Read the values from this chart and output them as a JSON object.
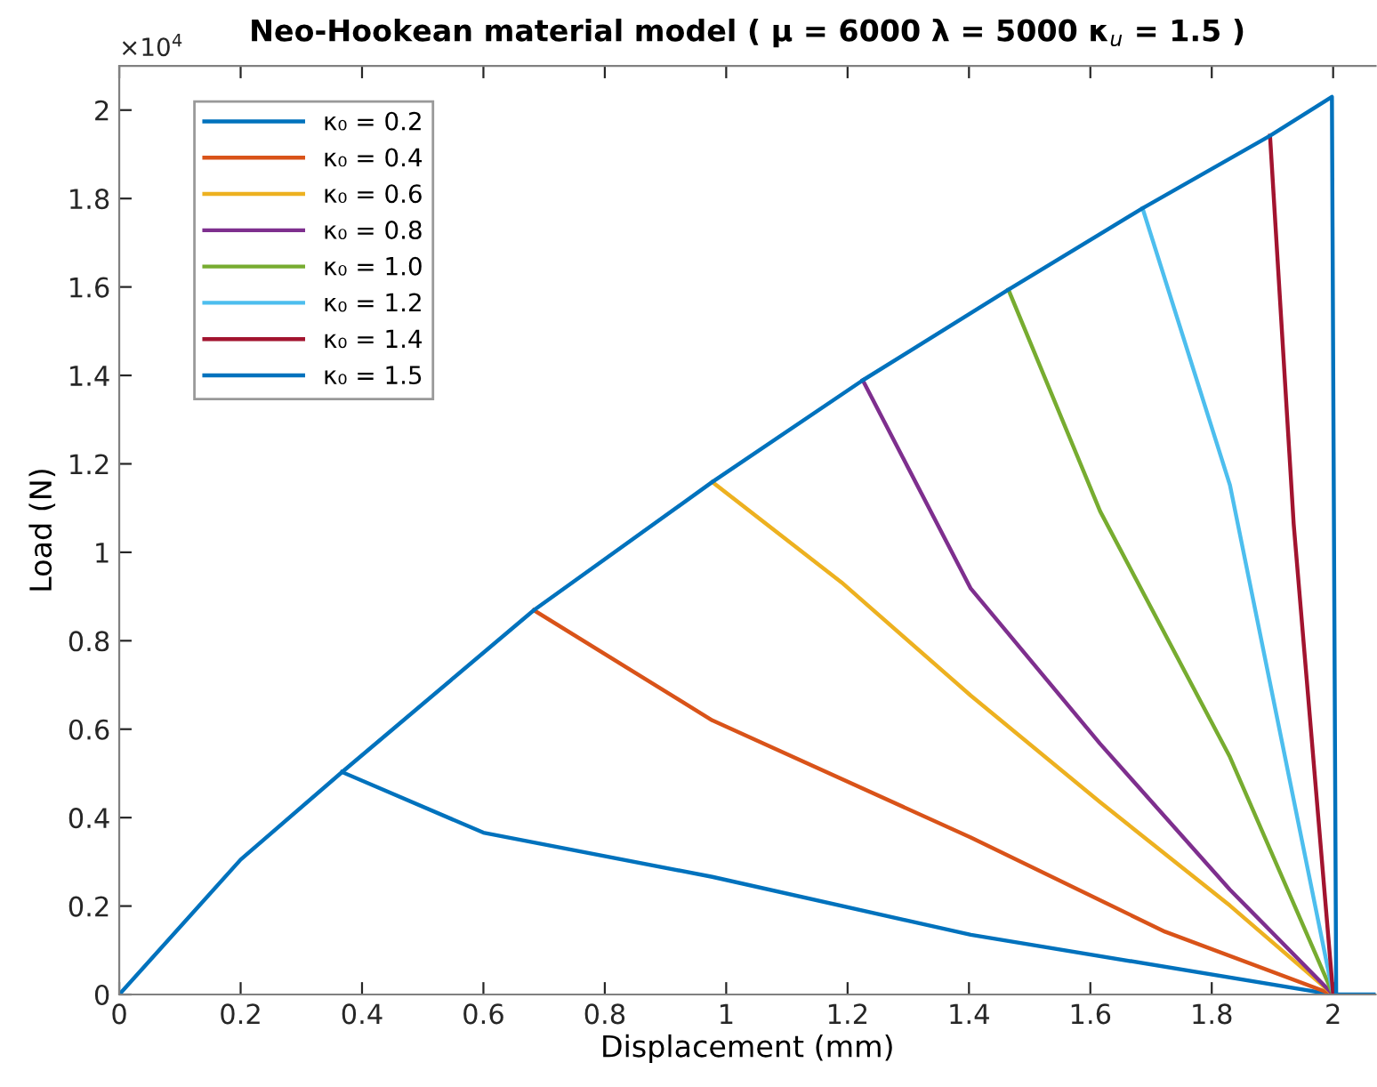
{
  "chart_data": {
    "type": "line",
    "title": "Neo-Hookean material model ( μ = 6000 λ = 5000 κ$_{u}$ = 1.5 )",
    "xlabel": "Displacement (mm)",
    "ylabel": "Load (N)",
    "annotations": [
      "×10$^{4}$"
    ],
    "series": [
      {
        "name": "κ₀ = 0.2",
        "color": "#0072bd",
        "x": [
          0.367,
          0.6,
          0.977,
          1.403,
          2.0
        ],
        "values": [
          0.503,
          0.366,
          0.266,
          0.135,
          0
        ]
      },
      {
        "name": "κ₀ = 0.4",
        "color": "#d95319",
        "x": [
          0.683,
          0.977,
          1.403,
          1.723,
          2.0
        ],
        "values": [
          0.869,
          0.62,
          0.355,
          0.142,
          0
        ]
      },
      {
        "name": "κ₀ = 0.6",
        "color": "#edb120",
        "x": [
          0.977,
          1.19,
          1.403,
          1.616,
          1.83,
          2.0
        ],
        "values": [
          1.159,
          0.932,
          0.676,
          0.435,
          0.201,
          0
        ]
      },
      {
        "name": "κ₀ = 0.8",
        "color": "#7e2f8e",
        "x": [
          1.225,
          1.403,
          1.616,
          1.83,
          2.0
        ],
        "values": [
          1.389,
          0.918,
          0.567,
          0.237,
          0
        ]
      },
      {
        "name": "κ₀ = 1.0",
        "color": "#77ac30",
        "x": [
          1.465,
          1.616,
          1.83,
          2.0
        ],
        "values": [
          1.594,
          1.093,
          0.537,
          0
        ]
      },
      {
        "name": "κ₀ = 1.2",
        "color": "#4dbeee",
        "x": [
          1.686,
          1.83,
          2.0
        ],
        "values": [
          1.778,
          1.152,
          0
        ]
      },
      {
        "name": "κ₀ = 1.4",
        "color": "#a2142f",
        "x": [
          1.896,
          1.935,
          2.0
        ],
        "values": [
          1.942,
          1.064,
          0
        ]
      },
      {
        "name": "κ₀ = 1.5",
        "color": "#0072bd",
        "x": [
          0,
          0.2,
          0.367,
          0.683,
          0.977,
          1.225,
          1.465,
          1.686,
          1.896,
          1.998,
          2.005,
          2.07
        ],
        "values": [
          0,
          0.305,
          0.503,
          0.869,
          1.159,
          1.389,
          1.594,
          1.778,
          1.942,
          2.03,
          0,
          0
        ]
      }
    ],
    "xlim": [
      0,
      2.07
    ],
    "ylim": [
      0,
      2.1
    ],
    "xticks": [
      0,
      0.2,
      0.4,
      0.6,
      0.8,
      1,
      1.2,
      1.4,
      1.6,
      1.8,
      2
    ],
    "yticks": [
      0,
      0.2,
      0.4,
      0.6,
      0.8,
      1,
      1.2,
      1.4,
      1.6,
      1.8,
      2
    ],
    "grid": false,
    "legend": "top left",
    "marker": "none",
    "line_style": "solid"
  }
}
